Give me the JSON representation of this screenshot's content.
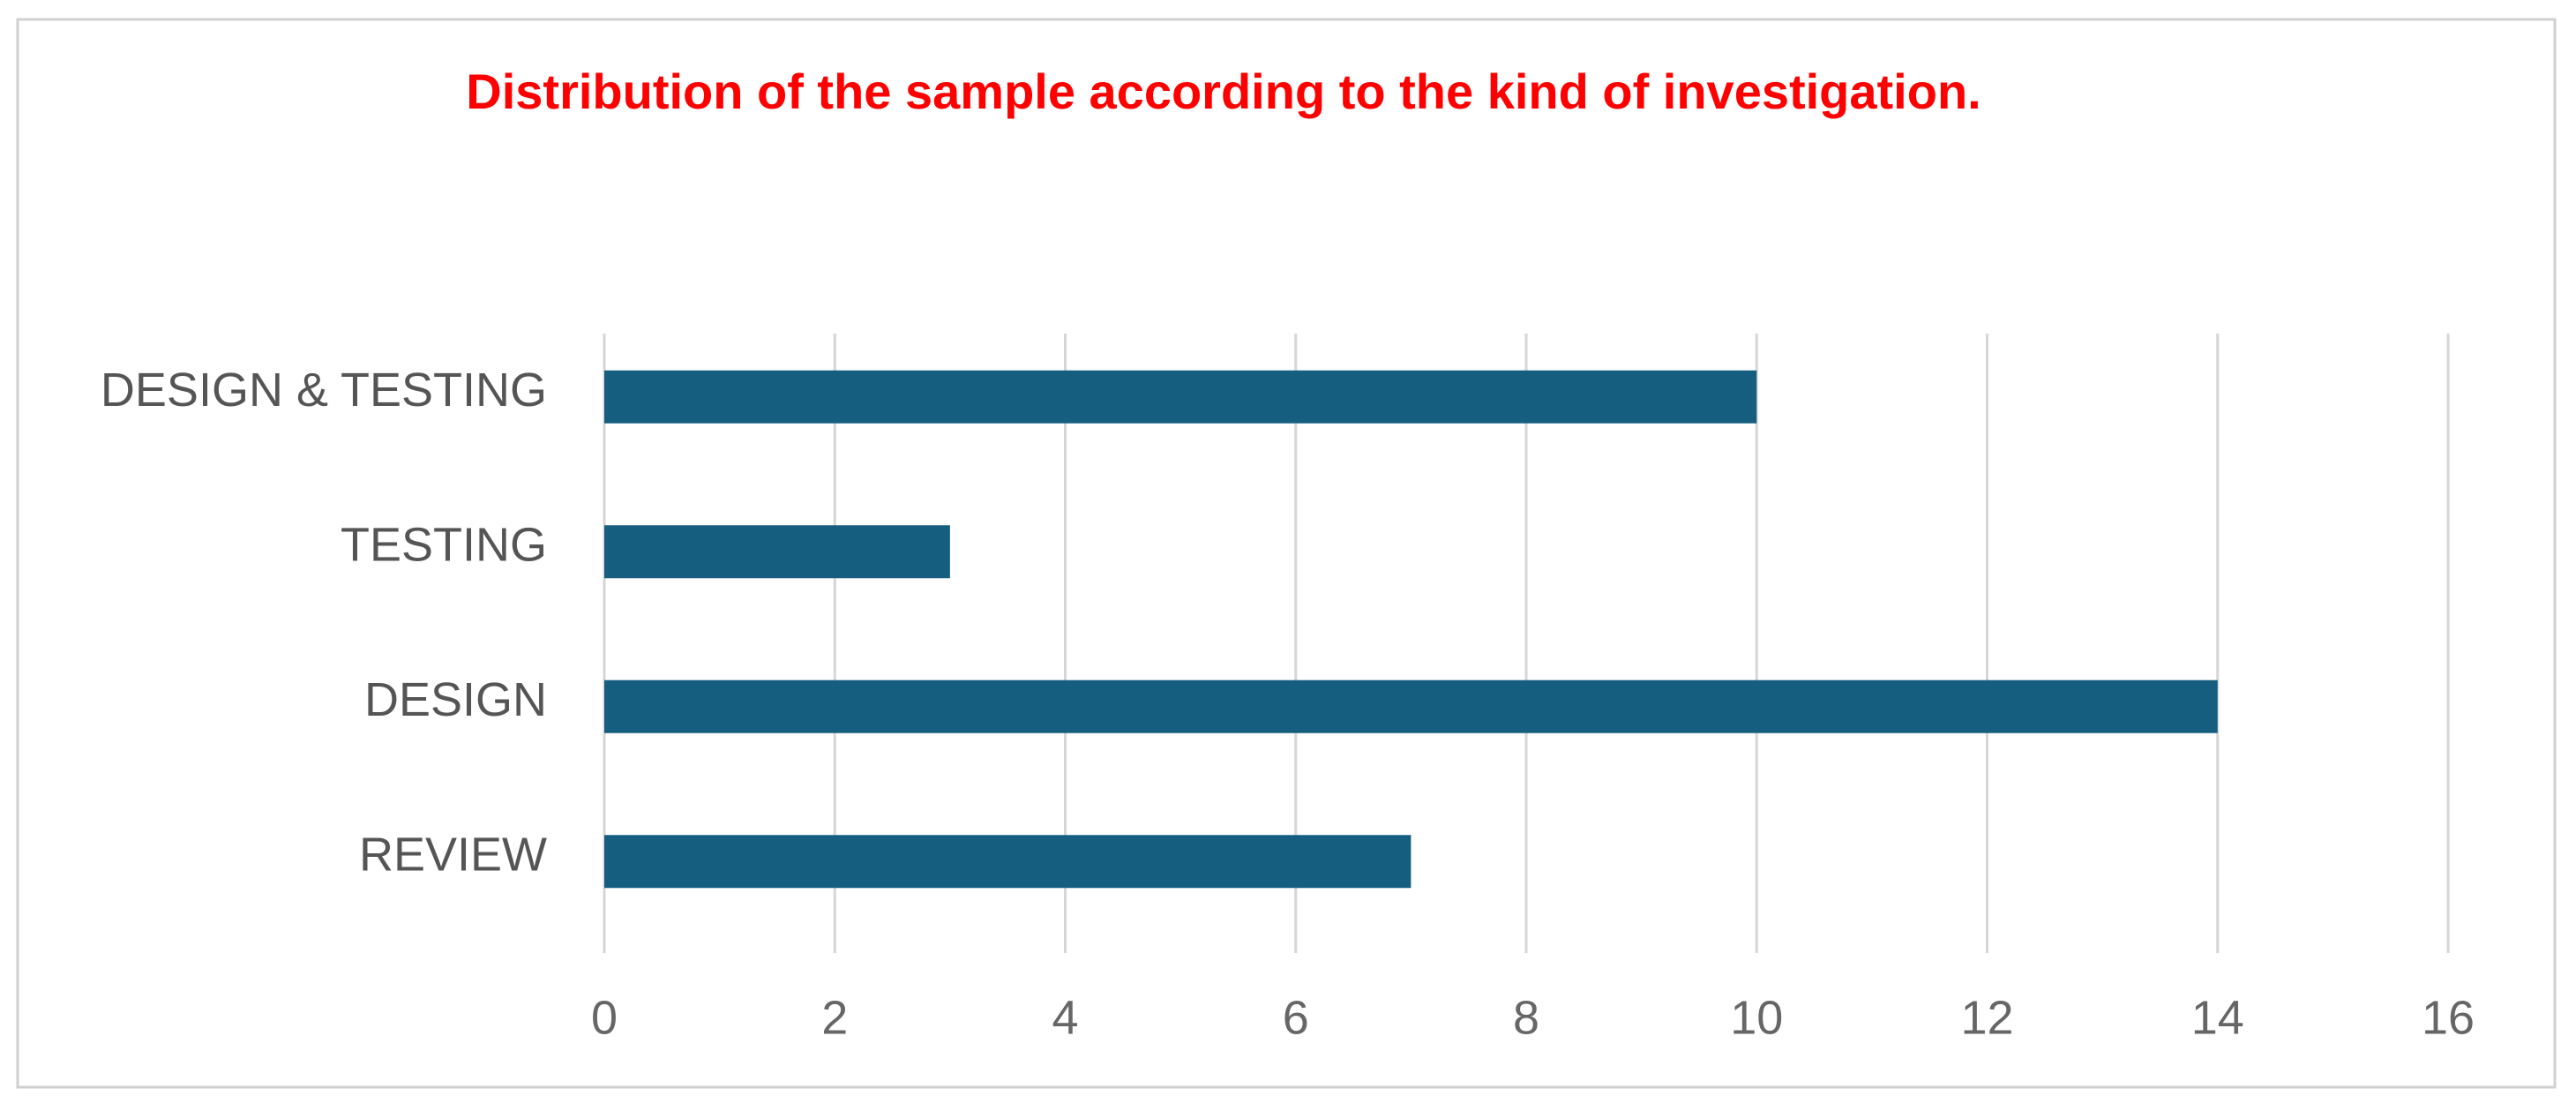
{
  "chart_data": {
    "type": "bar",
    "orientation": "horizontal",
    "title": "Distribution of the sample according to the kind of investigation.",
    "categories": [
      "DESIGN & TESTING",
      "TESTING",
      "DESIGN",
      "REVIEW"
    ],
    "values": [
      10,
      3,
      14,
      7
    ],
    "color": "#165e80",
    "title_color": "#ff0000",
    "xlim": [
      0,
      16
    ],
    "xticks": [
      0,
      2,
      4,
      6,
      8,
      10,
      12,
      14,
      16
    ],
    "grid": true
  }
}
